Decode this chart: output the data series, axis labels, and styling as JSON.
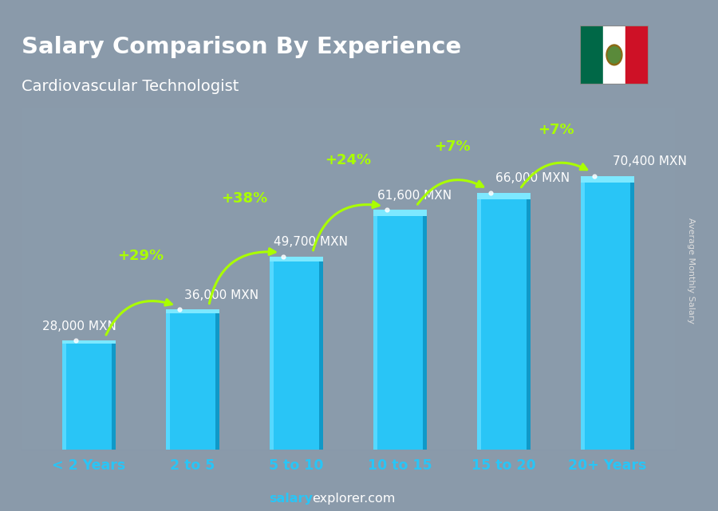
{
  "categories": [
    "< 2 Years",
    "2 to 5",
    "5 to 10",
    "10 to 15",
    "15 to 20",
    "20+ Years"
  ],
  "values": [
    28000,
    36000,
    49700,
    61600,
    66000,
    70400
  ],
  "value_labels": [
    "28,000 MXN",
    "36,000 MXN",
    "49,700 MXN",
    "61,600 MXN",
    "66,000 MXN",
    "70,400 MXN"
  ],
  "pct_labels": [
    "+29%",
    "+38%",
    "+24%",
    "+7%",
    "+7%"
  ],
  "bar_color_main": "#29C5F6",
  "bar_color_left": "#55D8FF",
  "bar_color_right": "#1099C8",
  "bar_color_top": "#7DE8FF",
  "title_line1": "Salary Comparison By Experience",
  "title_line2": "Cardiovascular Technologist",
  "ylabel_right": "Average Monthly Salary",
  "bg_color": "#8a9aaa",
  "overlay_color": "#6a7a8a",
  "title_color": "#ffffff",
  "subtitle_color": "#ffffff",
  "bar_label_color": "#ffffff",
  "pct_color": "#aaff00",
  "arrow_color": "#aaff00",
  "xlabel_color": "#29C5F6",
  "footer_color1": "#29C5F6",
  "footer_color2": "#ffffff",
  "ylim": [
    0,
    88000
  ],
  "flag_green": "#006847",
  "flag_white": "#ffffff",
  "flag_red": "#ce1126"
}
